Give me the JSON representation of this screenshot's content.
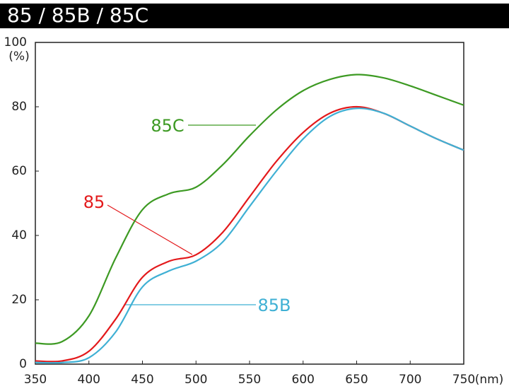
{
  "chart_data": {
    "type": "line",
    "title": "85 / 85B / 85C",
    "y_label": "(%)",
    "x_label": "(nm)",
    "x": [
      350,
      375,
      400,
      425,
      450,
      475,
      500,
      525,
      550,
      575,
      600,
      625,
      650,
      675,
      700,
      725,
      750
    ],
    "series": [
      {
        "name": "85",
        "color": "#e3191b",
        "values": [
          1,
          1,
          4,
          14,
          27,
          32,
          34,
          41,
          52,
          63,
          72,
          78,
          80,
          78,
          74,
          70,
          66.5
        ]
      },
      {
        "name": "85B",
        "color": "#3fb0d4",
        "values": [
          0.5,
          0.5,
          2,
          10,
          24,
          29,
          32,
          38,
          49,
          60,
          70,
          77,
          79.5,
          78,
          74,
          70,
          66.5
        ]
      },
      {
        "name": "85C",
        "color": "#3d9a23",
        "values": [
          6.5,
          7,
          15,
          33,
          48,
          53,
          55,
          62,
          71,
          79,
          85,
          88.5,
          90,
          89,
          86.5,
          83.5,
          80.5
        ]
      }
    ],
    "xlim": [
      350,
      750
    ],
    "xticks": [
      350,
      400,
      450,
      500,
      550,
      600,
      650,
      700,
      750
    ],
    "ylim": [
      0,
      100
    ],
    "yticks": [
      0,
      20,
      40,
      60,
      80,
      100
    ]
  }
}
